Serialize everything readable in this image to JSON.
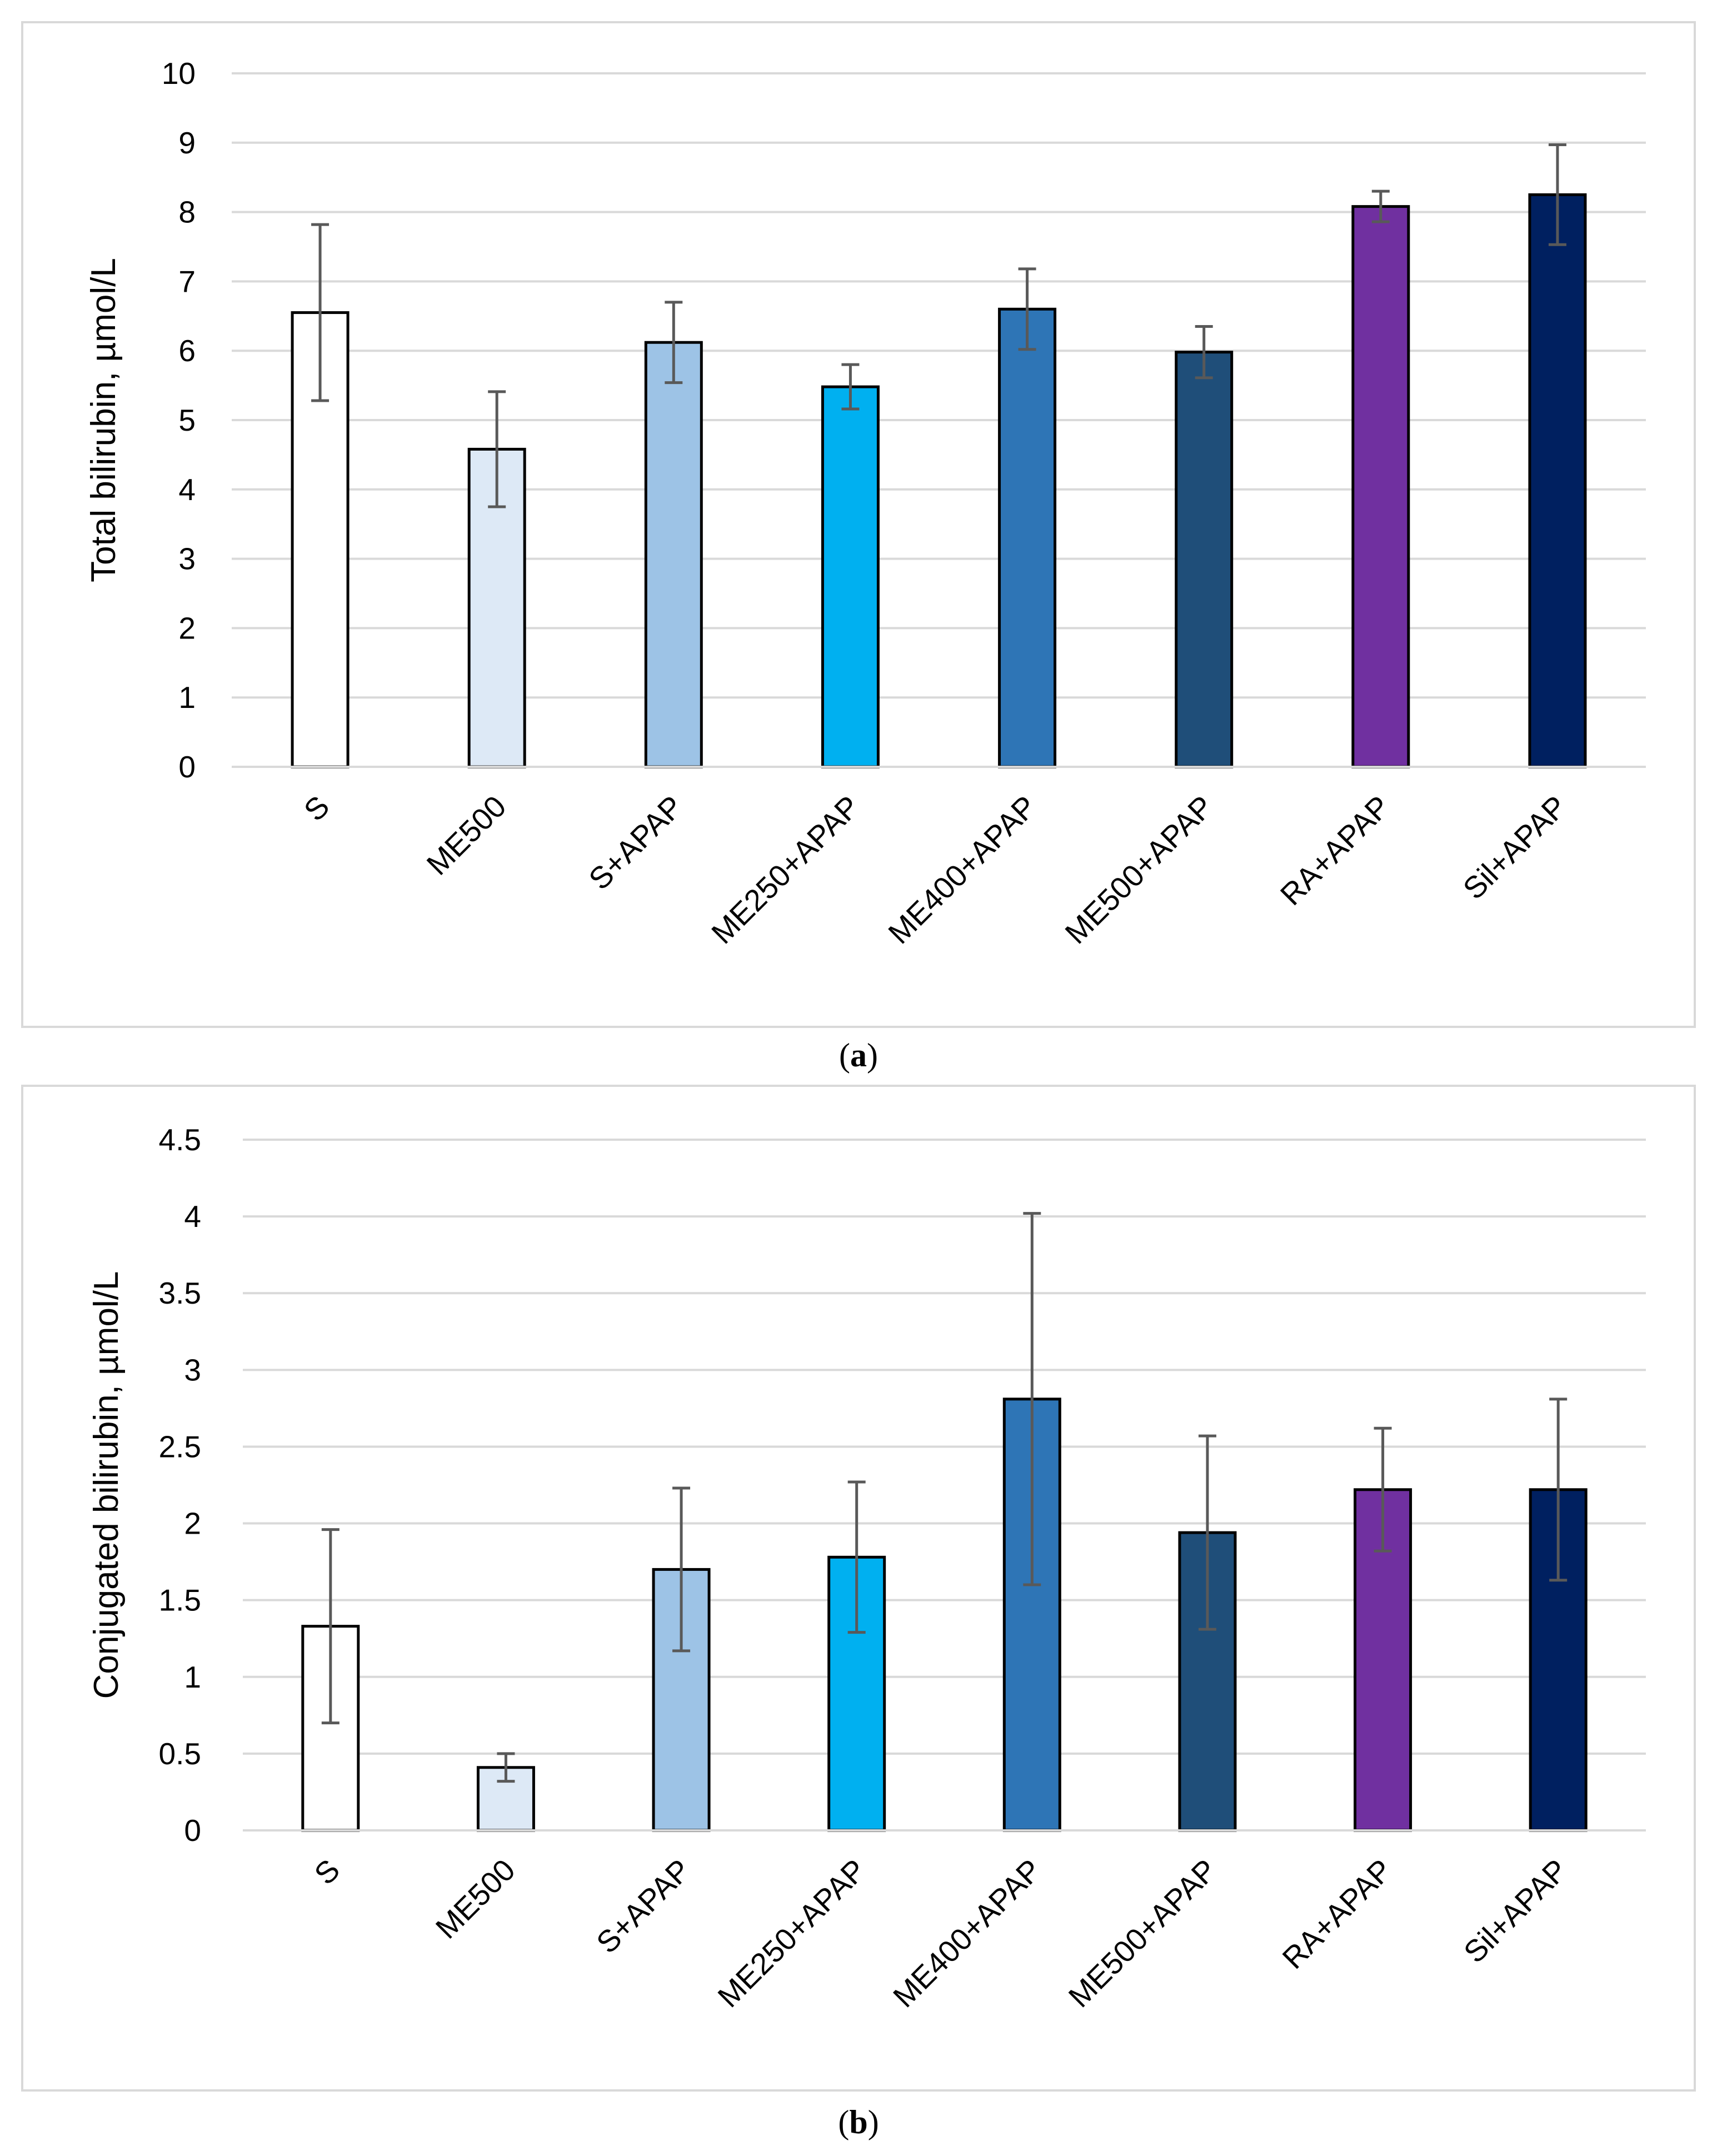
{
  "chart_data": [
    {
      "id": "a",
      "panel_label": "a",
      "type": "bar",
      "title": "",
      "xlabel": "",
      "ylabel": "Total bilirubin, µmol/L",
      "ylim": [
        0,
        10
      ],
      "yticks": [
        0,
        1,
        2,
        3,
        4,
        5,
        6,
        7,
        8,
        9,
        10
      ],
      "ytick_labels": [
        "0",
        "1",
        "2",
        "3",
        "4",
        "5",
        "6",
        "7",
        "8",
        "9",
        "10"
      ],
      "grid": true,
      "categories": [
        "S",
        "ME500",
        "S+APAP",
        "ME250+APAP",
        "ME400+APAP",
        "ME500+APAP",
        "RA+APAP",
        "Sil+APAP"
      ],
      "values": [
        6.55,
        4.58,
        6.12,
        5.48,
        6.6,
        5.98,
        8.08,
        8.25
      ],
      "errors": [
        1.27,
        0.83,
        0.58,
        0.32,
        0.58,
        0.37,
        0.22,
        0.72
      ],
      "colors": [
        "#ffffff",
        "#dde9f6",
        "#9dc3e6",
        "#00b0f0",
        "#2e75b6",
        "#1f4e79",
        "#7030a0",
        "#002060"
      ]
    },
    {
      "id": "b",
      "panel_label": "b",
      "type": "bar",
      "title": "",
      "xlabel": "",
      "ylabel": "Conjugated  bilirubin, µmol/L",
      "ylim": [
        0,
        4.5
      ],
      "yticks": [
        0,
        0.5,
        1,
        1.5,
        2,
        2.5,
        3,
        3.5,
        4,
        4.5
      ],
      "ytick_labels": [
        "0",
        "0.5",
        "1",
        "1.5",
        "2",
        "2.5",
        "3",
        "3.5",
        "4",
        "4.5"
      ],
      "grid": true,
      "categories": [
        "S",
        "ME500",
        "S+APAP",
        "ME250+APAP",
        "ME400+APAP",
        "ME500+APAP",
        "RA+APAP",
        "Sil+APAP"
      ],
      "values": [
        1.33,
        0.41,
        1.7,
        1.78,
        2.81,
        1.94,
        2.22,
        2.22
      ],
      "errors": [
        0.63,
        0.09,
        0.53,
        0.49,
        1.21,
        0.63,
        0.4,
        0.59
      ],
      "colors": [
        "#ffffff",
        "#dde9f6",
        "#9dc3e6",
        "#00b0f0",
        "#2e75b6",
        "#1f4e79",
        "#7030a0",
        "#002060"
      ]
    }
  ]
}
